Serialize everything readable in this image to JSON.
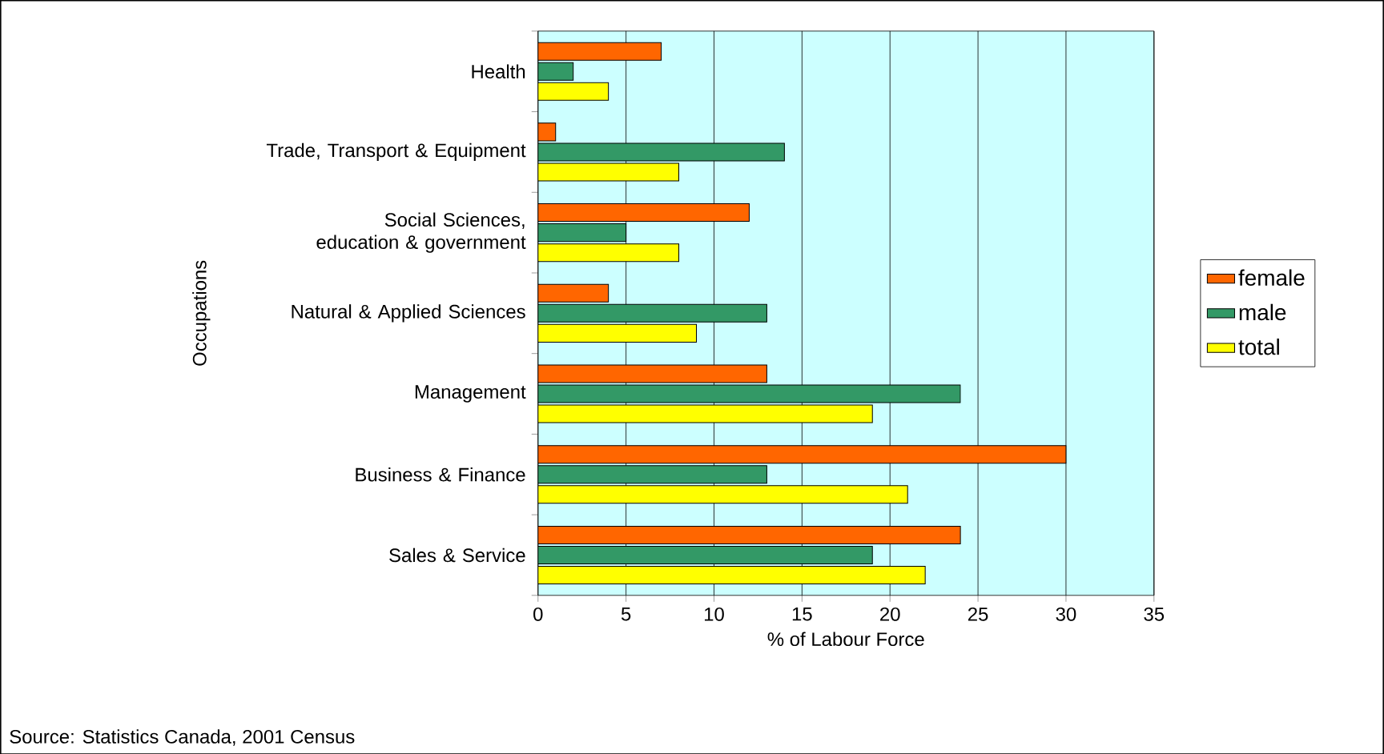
{
  "chart_data": {
    "type": "bar",
    "orientation": "horizontal",
    "categories": [
      "Health",
      "Trade, Transport & Equipment",
      "Social Sciences, education & government",
      "Natural & Applied Sciences",
      "Management",
      "Business & Finance",
      "Sales & Service"
    ],
    "series": [
      {
        "name": "female",
        "color": "#ff6600",
        "values": [
          7,
          1,
          12,
          4,
          13,
          30,
          24
        ]
      },
      {
        "name": "male",
        "color": "#339966",
        "values": [
          2,
          14,
          5,
          13,
          24,
          13,
          19
        ]
      },
      {
        "name": "total",
        "color": "#ffff00",
        "values": [
          4,
          8,
          8,
          9,
          19,
          21,
          22
        ]
      }
    ],
    "xlim": [
      0,
      35
    ],
    "xticks": [
      0,
      5,
      10,
      15,
      20,
      25,
      30,
      35
    ],
    "xlabel": "% of Labour Force",
    "ylabel": "Occupations",
    "grid": "x",
    "legend": "right",
    "annotations": [
      "Source: Statistics Canada, 2001 Census"
    ]
  }
}
